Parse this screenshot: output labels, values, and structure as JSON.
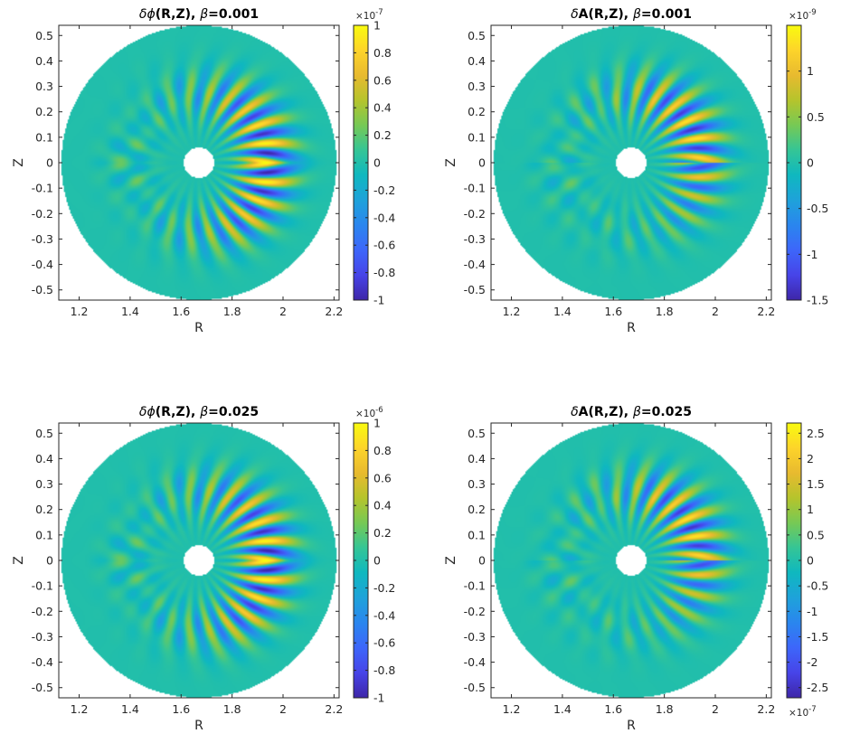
{
  "colors": {
    "parula": [
      "#3e26a8",
      "#4744e8",
      "#3d66fa",
      "#2a86ee",
      "#1ea2da",
      "#0fb8bf",
      "#34c596",
      "#76c955",
      "#b5c42c",
      "#e8ba2f",
      "#fdd42a",
      "#f9fb0e"
    ],
    "background": "#1fa9c8"
  },
  "chart_data": [
    {
      "type": "heatmap",
      "title_prefix": "δ",
      "title_symbol": "ϕ",
      "title_rest": "(R,Z), ",
      "title_beta": "β",
      "title_value": "=0.001",
      "xlabel": "R",
      "ylabel": "Z",
      "xlim": [
        1.12,
        2.22
      ],
      "ylim": [
        -0.54,
        0.54
      ],
      "xticks": [
        "1.2",
        "1.4",
        "1.6",
        "1.8",
        "2",
        "2.2"
      ],
      "yticks": [
        "0.5",
        "0.4",
        "0.3",
        "0.2",
        "0.1",
        "0",
        "-0.1",
        "-0.2",
        "-0.3",
        "-0.4",
        "-0.5"
      ],
      "colorbar": {
        "min": -1,
        "max": 1,
        "ticks": [
          "1",
          "0.8",
          "0.6",
          "0.4",
          "0.2",
          "0",
          "-0.2",
          "-0.4",
          "-0.6",
          "-0.8",
          "-1"
        ],
        "exponent_base": "×10",
        "exponent_power": "-7",
        "exponent_position": "top"
      },
      "field": {
        "center_R": 1.67,
        "center_Z": 0.0,
        "outer_radius": 0.54,
        "inner_radius": 0.06,
        "mode_peak_R": 1.95,
        "asymmetry": "outboard ballooning"
      }
    },
    {
      "type": "heatmap",
      "title_prefix": "δ",
      "title_symbol": "",
      "title_rest": "A(R,Z), ",
      "title_beta": "β",
      "title_value": "=0.001",
      "xlabel": "R",
      "ylabel": "Z",
      "xlim": [
        1.12,
        2.22
      ],
      "ylim": [
        -0.54,
        0.54
      ],
      "xticks": [
        "1.2",
        "1.4",
        "1.6",
        "1.8",
        "2",
        "2.2"
      ],
      "yticks": [
        "0.5",
        "0.4",
        "0.3",
        "0.2",
        "0.1",
        "0",
        "-0.1",
        "-0.2",
        "-0.3",
        "-0.4",
        "-0.5"
      ],
      "colorbar": {
        "min": -1.5,
        "max": 1.5,
        "ticks": [
          "1",
          "0.5",
          "0",
          "-0.5",
          "-1",
          "-1.5"
        ],
        "exponent_base": "×10",
        "exponent_power": "-9",
        "exponent_position": "top"
      },
      "field": {
        "center_R": 1.67,
        "center_Z": 0.0,
        "outer_radius": 0.54,
        "inner_radius": 0.06,
        "mode_peak_R": 1.9,
        "asymmetry": "anti-symmetric in Z"
      }
    },
    {
      "type": "heatmap",
      "title_prefix": "δ",
      "title_symbol": "ϕ",
      "title_rest": "(R,Z), ",
      "title_beta": "β",
      "title_value": "=0.025",
      "xlabel": "R",
      "ylabel": "Z",
      "xlim": [
        1.12,
        2.22
      ],
      "ylim": [
        -0.54,
        0.54
      ],
      "xticks": [
        "1.2",
        "1.4",
        "1.6",
        "1.8",
        "2",
        "2.2"
      ],
      "yticks": [
        "0.5",
        "0.4",
        "0.3",
        "0.2",
        "0.1",
        "0",
        "-0.1",
        "-0.2",
        "-0.3",
        "-0.4",
        "-0.5"
      ],
      "colorbar": {
        "min": -1,
        "max": 1,
        "ticks": [
          "1",
          "0.8",
          "0.6",
          "0.4",
          "0.2",
          "0",
          "-0.2",
          "-0.4",
          "-0.6",
          "-0.8",
          "-1"
        ],
        "exponent_base": "×10",
        "exponent_power": "-6",
        "exponent_position": "top"
      },
      "field": {
        "center_R": 1.67,
        "center_Z": 0.0,
        "outer_radius": 0.54,
        "inner_radius": 0.06,
        "mode_peak_R": 1.95,
        "asymmetry": "outboard ballooning"
      }
    },
    {
      "type": "heatmap",
      "title_prefix": "δ",
      "title_symbol": "",
      "title_rest": "A(R,Z), ",
      "title_beta": "β",
      "title_value": "=0.025",
      "xlabel": "R",
      "ylabel": "Z",
      "xlim": [
        1.12,
        2.22
      ],
      "ylim": [
        -0.54,
        0.54
      ],
      "xticks": [
        "1.2",
        "1.4",
        "1.6",
        "1.8",
        "2",
        "2.2"
      ],
      "yticks": [
        "0.5",
        "0.4",
        "0.3",
        "0.2",
        "0.1",
        "0",
        "-0.1",
        "-0.2",
        "-0.3",
        "-0.4",
        "-0.5"
      ],
      "colorbar": {
        "min": -2.7,
        "max": 2.7,
        "ticks": [
          "2.5",
          "2",
          "1.5",
          "1",
          "0.5",
          "0",
          "-0.5",
          "-1",
          "-1.5",
          "-2",
          "-2.5"
        ],
        "exponent_base": "×10",
        "exponent_power": "-7",
        "exponent_position": "bottom"
      },
      "field": {
        "center_R": 1.67,
        "center_Z": 0.0,
        "outer_radius": 0.54,
        "inner_radius": 0.06,
        "mode_peak_R": 1.9,
        "asymmetry": "anti-symmetric in Z"
      }
    }
  ]
}
